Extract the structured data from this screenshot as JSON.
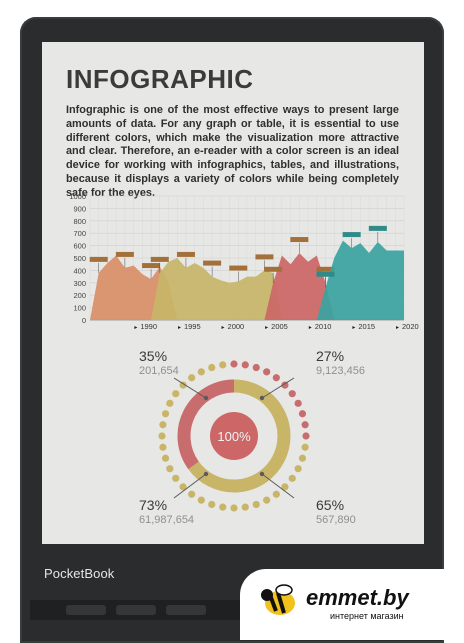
{
  "screen": {
    "title": "INFOGRAPHIC",
    "paragraph": "Infographic is one of the most effective ways to present large amounts of data. For any graph or table, it is essential to use different colors, which make the visualization more attractive and clear. Therefore, an e-reader with a color screen is an ideal device for working with infographics, tables, and illustrations, because it displays a variety of colors while being completely safe for the eyes.",
    "donut": {
      "center_label": "100%",
      "stats": [
        {
          "percent": "35%",
          "value": "201,654"
        },
        {
          "percent": "27%",
          "value": "9,123,456"
        },
        {
          "percent": "73%",
          "value": "61,987,654"
        },
        {
          "percent": "65%",
          "value": "567,890"
        }
      ]
    }
  },
  "device": {
    "brand": "PocketBook"
  },
  "badge": {
    "name": "emmet.by",
    "subtitle": "интернет магазин"
  },
  "colors": {
    "orange": "#d98f66",
    "yellow": "#c8b568",
    "red": "#cd6666",
    "teal": "#3aa3a0",
    "pink": "#c96c6e"
  },
  "chart_data": [
    {
      "type": "area",
      "title": "",
      "xlabel": "",
      "ylabel": "",
      "ylim": [
        0,
        1000
      ],
      "yticks": [
        0,
        100,
        200,
        300,
        400,
        500,
        600,
        700,
        800,
        900,
        1000
      ],
      "xtick_labels": [
        "1990",
        "1995",
        "2000",
        "2005",
        "2010",
        "2015",
        "2020"
      ],
      "x_range": [
        1984,
        2020
      ],
      "grid": true,
      "series": [
        {
          "color": "orange",
          "x": [
            1984,
            1985,
            1986,
            1987,
            1988,
            1989,
            1990,
            1991,
            1992,
            1993,
            1994
          ],
          "values": [
            0,
            380,
            460,
            520,
            420,
            440,
            370,
            330,
            430,
            300,
            0
          ]
        },
        {
          "color": "yellow",
          "x": [
            1991,
            1992,
            1993,
            1994,
            1995,
            1996,
            1997,
            1998,
            1999,
            2000,
            2001,
            2002,
            2003,
            2004,
            2005,
            2006
          ],
          "values": [
            0,
            380,
            470,
            500,
            420,
            460,
            420,
            350,
            320,
            300,
            310,
            350,
            350,
            400,
            380,
            0
          ]
        },
        {
          "color": "red",
          "x": [
            2004,
            2005,
            2006,
            2007,
            2008,
            2009,
            2010,
            2011,
            2012
          ],
          "values": [
            0,
            300,
            520,
            450,
            540,
            470,
            520,
            300,
            0
          ]
        },
        {
          "color": "teal",
          "x": [
            2010,
            2011,
            2012,
            2013,
            2014,
            2015,
            2016,
            2017,
            2018,
            2019,
            2020
          ],
          "values": [
            0,
            260,
            500,
            640,
            580,
            620,
            540,
            630,
            560,
            560,
            560
          ]
        }
      ]
    },
    {
      "type": "pie",
      "title": "",
      "categories": [
        "yellow",
        "pink"
      ],
      "values": [
        65,
        35
      ],
      "center_label": "100%"
    }
  ]
}
